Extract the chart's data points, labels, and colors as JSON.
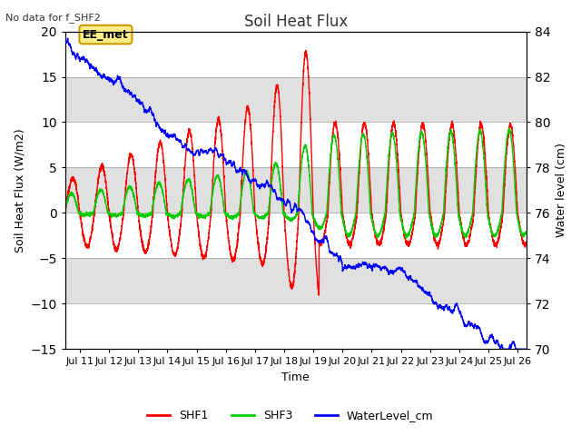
{
  "title": "Soil Heat Flux",
  "no_data_text": "No data for f_SHF2",
  "xlabel": "Time",
  "ylabel_left": "Soil Heat Flux (W/m2)",
  "ylabel_right": "Water level (cm)",
  "xlim_days": [
    10.5,
    26.3
  ],
  "ylim_left": [
    -15,
    20
  ],
  "ylim_right": [
    70,
    84
  ],
  "yticks_left": [
    -15,
    -10,
    -5,
    0,
    5,
    10,
    15,
    20
  ],
  "yticks_right": [
    70,
    72,
    74,
    76,
    78,
    80,
    82,
    84
  ],
  "xtick_labels": [
    "Jul 11",
    "Jul 12",
    "Jul 13",
    "Jul 14",
    "Jul 15",
    "Jul 16",
    "Jul 17",
    "Jul 18",
    "Jul 19",
    "Jul 20",
    "Jul 21",
    "Jul 22",
    "Jul 23",
    "Jul 24",
    "Jul 25",
    "Jul 26"
  ],
  "xtick_days": [
    11,
    12,
    13,
    14,
    15,
    16,
    17,
    18,
    19,
    20,
    21,
    22,
    23,
    24,
    25,
    26
  ],
  "shf1_color": "#ff0000",
  "shf3_color": "#00cc00",
  "water_color": "#0000ff",
  "ee_met_label": "EE_met",
  "band_light": "#f0f0f0",
  "band_dark": "#e0e0e0",
  "bg_color": "#f0f0f0"
}
